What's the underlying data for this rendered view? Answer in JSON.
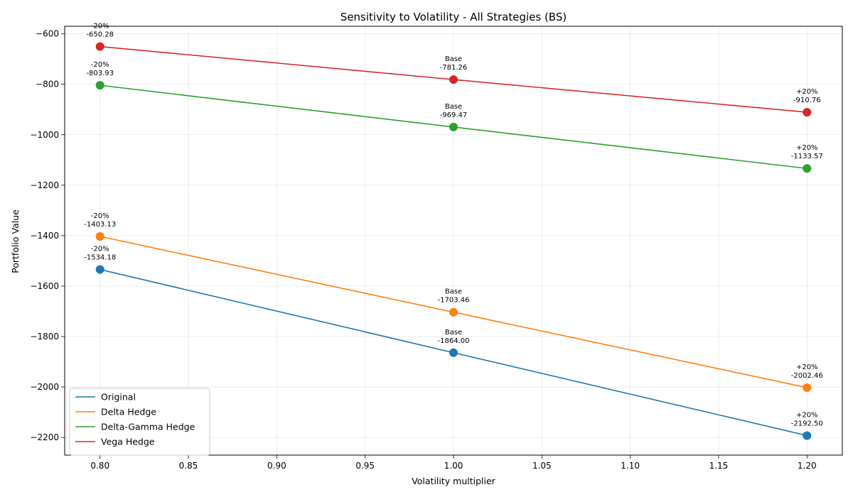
{
  "chart_data": {
    "type": "line",
    "title": "Sensitivity to Volatility - All Strategies (BS)",
    "xlabel": "Volatility multiplier",
    "ylabel": "Portfolio Value",
    "x": [
      0.8,
      1.0,
      1.2
    ],
    "xlim": [
      0.78,
      1.22
    ],
    "ylim": [
      -2270,
      -570
    ],
    "xticks": [
      "0.80",
      "0.85",
      "0.90",
      "0.95",
      "1.00",
      "1.05",
      "1.10",
      "1.15",
      "1.20"
    ],
    "yticks": [
      "−600",
      "−800",
      "−1000",
      "−1200",
      "−1400",
      "−1600",
      "−1800",
      "−2000",
      "−2200"
    ],
    "grid": true,
    "legend_position": "bottom-left",
    "point_tags": [
      "-20%",
      "Base",
      "+20%"
    ],
    "series": [
      {
        "name": "Original",
        "color": "#1f77b4",
        "values": [
          -1534.18,
          -1864.0,
          -2192.5
        ],
        "labels": [
          "-1534.18",
          "-1864.00",
          "-2192.50"
        ]
      },
      {
        "name": "Delta Hedge",
        "color": "#ff7f0e",
        "values": [
          -1403.13,
          -1703.46,
          -2002.46
        ],
        "labels": [
          "-1403.13",
          "-1703.46",
          "-2002.46"
        ]
      },
      {
        "name": "Delta-Gamma Hedge",
        "color": "#2ca02c",
        "values": [
          -803.93,
          -969.47,
          -1133.57
        ],
        "labels": [
          "-803.93",
          "-969.47",
          "-1133.57"
        ]
      },
      {
        "name": "Vega Hedge",
        "color": "#d62728",
        "values": [
          -650.28,
          -781.26,
          -910.76
        ],
        "labels": [
          "-650.28",
          "-781.26",
          "-910.76"
        ]
      }
    ]
  }
}
